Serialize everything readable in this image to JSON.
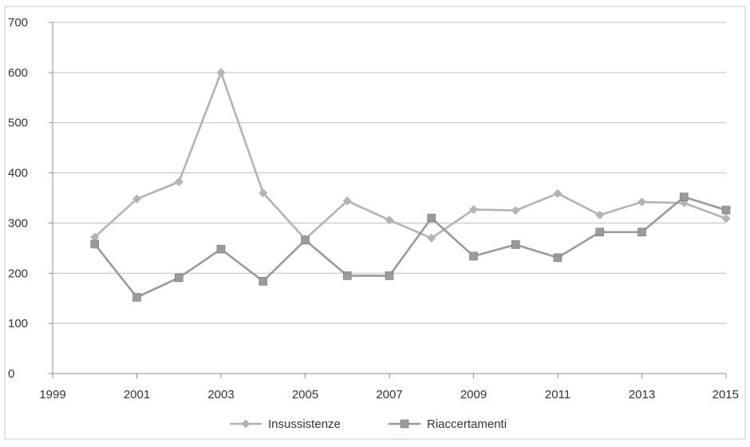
{
  "chart_data": {
    "type": "line",
    "title": "",
    "xlabel": "",
    "ylabel": "",
    "xlim": [
      1999,
      2015
    ],
    "ylim": [
      0,
      700
    ],
    "x_ticks": [
      "1999",
      "2001",
      "2003",
      "2005",
      "2007",
      "2009",
      "2011",
      "2013",
      "2015"
    ],
    "y_ticks": [
      "0",
      "100",
      "200",
      "300",
      "400",
      "500",
      "600",
      "700"
    ],
    "grid": "horizontal",
    "legend_position": "bottom",
    "x": [
      2000,
      2001,
      2002,
      2003,
      2004,
      2005,
      2006,
      2007,
      2008,
      2009,
      2010,
      2011,
      2012,
      2013,
      2014,
      2015
    ],
    "series": [
      {
        "name": "Insussistenze",
        "marker": "diamond",
        "color": "#b3b3b3",
        "values": [
          272,
          348,
          382,
          600,
          360,
          268,
          344,
          306,
          270,
          327,
          325,
          359,
          316,
          342,
          340,
          309
        ]
      },
      {
        "name": "Riaccertamenti",
        "marker": "square",
        "color": "#9a9a9a",
        "values": [
          258,
          152,
          191,
          248,
          184,
          266,
          195,
          195,
          310,
          234,
          257,
          231,
          282,
          282,
          352,
          326
        ]
      }
    ]
  }
}
